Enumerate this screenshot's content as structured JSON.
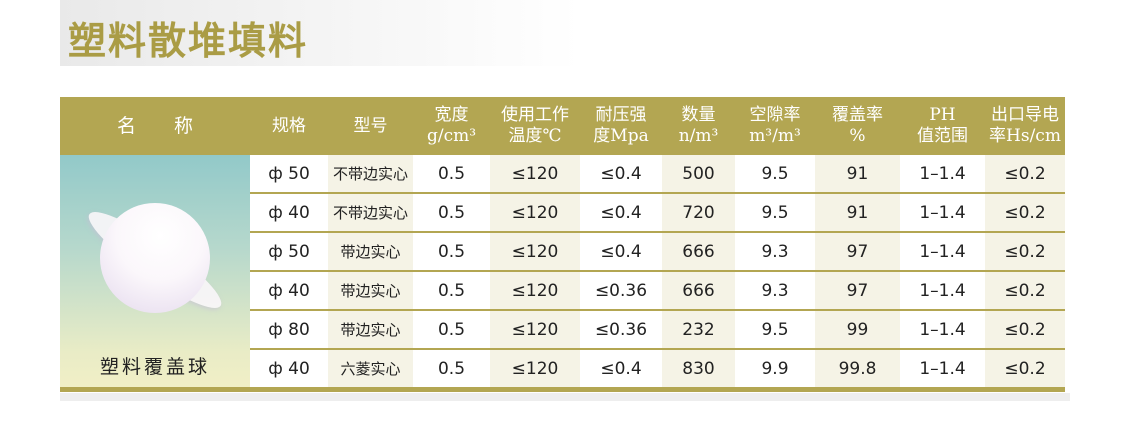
{
  "title": "塑料散堆填料",
  "product": {
    "name": "塑料覆盖球",
    "image_icon": "plastic-cover-ball-image"
  },
  "headers": [
    {
      "line1": "名　　称",
      "line2": ""
    },
    {
      "line1": "规格",
      "line2": ""
    },
    {
      "line1": "型号",
      "line2": ""
    },
    {
      "line1": "宽度",
      "line2": "g/cm³"
    },
    {
      "line1": "使用工作",
      "line2": "温度℃"
    },
    {
      "line1": "耐压强",
      "line2": "度Mpa"
    },
    {
      "line1": "数量",
      "line2": "n/m³"
    },
    {
      "line1": "空隙率",
      "line2": "m³/m³"
    },
    {
      "line1": "覆盖率",
      "line2": "%"
    },
    {
      "line1": "PH",
      "line2": "值范围"
    },
    {
      "line1": "出口导电",
      "line2": "率Hs/cm"
    }
  ],
  "rows": [
    [
      "ф 50",
      "不带边实心",
      "0.5",
      "≤120",
      "≤0.4",
      "500",
      "9.5",
      "91",
      "1–1.4",
      "≤0.2"
    ],
    [
      "ф 40",
      "不带边实心",
      "0.5",
      "≤120",
      "≤0.4",
      "720",
      "9.5",
      "91",
      "1–1.4",
      "≤0.2"
    ],
    [
      "ф 50",
      "带边实心",
      "0.5",
      "≤120",
      "≤0.4",
      "666",
      "9.3",
      "97",
      "1–1.4",
      "≤0.2"
    ],
    [
      "ф 40",
      "带边实心",
      "0.5",
      "≤120",
      "≤0.36",
      "666",
      "9.3",
      "97",
      "1–1.4",
      "≤0.2"
    ],
    [
      "ф 80",
      "带边实心",
      "0.5",
      "≤120",
      "≤0.36",
      "232",
      "9.5",
      "99",
      "1–1.4",
      "≤0.2"
    ],
    [
      "ф 40",
      "六菱实心",
      "0.5",
      "≤120",
      "≤0.4",
      "830",
      "9.9",
      "99.8",
      "1–1.4",
      "≤0.2"
    ]
  ],
  "colors": {
    "accent": "#b3a652",
    "title": "#aa9c45",
    "alt_column": "#f5f3e6"
  }
}
